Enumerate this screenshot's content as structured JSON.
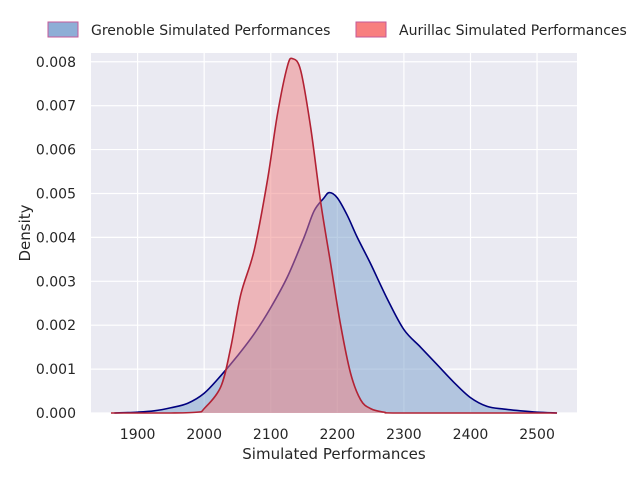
{
  "chart_data": {
    "type": "area",
    "xlabel": "Simulated Performances",
    "ylabel": "Density",
    "xlim": [
      1830,
      2560
    ],
    "ylim": [
      0,
      0.0082
    ],
    "x_ticks": [
      1900,
      2000,
      2100,
      2200,
      2300,
      2400,
      2500
    ],
    "y_ticks": [
      0.0,
      0.001,
      0.002,
      0.003,
      0.004,
      0.005,
      0.006,
      0.007,
      0.008
    ],
    "y_tick_labels": [
      "0.000",
      "0.001",
      "0.002",
      "0.003",
      "0.004",
      "0.005",
      "0.006",
      "0.007",
      "0.008"
    ],
    "grid": true,
    "legend_position": "top",
    "series": [
      {
        "name": "Grenoble Simulated Performances",
        "fill": "#7a9fcc",
        "line": "#00007f",
        "legend_fill": "#8eaed6",
        "legend_edge": "#c45a9a",
        "points": [
          [
            1865,
            0.0
          ],
          [
            1900,
            2e-05
          ],
          [
            1925,
            5e-05
          ],
          [
            1950,
            0.00012
          ],
          [
            1975,
            0.00022
          ],
          [
            2000,
            0.00045
          ],
          [
            2025,
            0.00085
          ],
          [
            2050,
            0.0013
          ],
          [
            2075,
            0.0018
          ],
          [
            2100,
            0.0024
          ],
          [
            2125,
            0.0031
          ],
          [
            2150,
            0.004
          ],
          [
            2165,
            0.0046
          ],
          [
            2180,
            0.0049
          ],
          [
            2188,
            0.00502
          ],
          [
            2200,
            0.0049
          ],
          [
            2215,
            0.0045
          ],
          [
            2230,
            0.004
          ],
          [
            2250,
            0.0034
          ],
          [
            2275,
            0.0026
          ],
          [
            2300,
            0.0019
          ],
          [
            2325,
            0.0015
          ],
          [
            2350,
            0.0011
          ],
          [
            2375,
            0.0007
          ],
          [
            2400,
            0.00035
          ],
          [
            2425,
            0.00015
          ],
          [
            2450,
            9e-05
          ],
          [
            2475,
            5e-05
          ],
          [
            2500,
            2e-05
          ],
          [
            2530,
            0.0
          ]
        ]
      },
      {
        "name": "Aurillac Simulated Performances",
        "fill": "#f08080",
        "line": "#b22234",
        "legend_fill": "#f87f7f",
        "legend_edge": "#c45a9a",
        "points": [
          [
            1860,
            0.0
          ],
          [
            1950,
            0.0
          ],
          [
            1990,
            2e-05
          ],
          [
            2000,
            0.0001
          ],
          [
            2025,
            0.0006
          ],
          [
            2040,
            0.0015
          ],
          [
            2055,
            0.0027
          ],
          [
            2075,
            0.0037
          ],
          [
            2095,
            0.0053
          ],
          [
            2110,
            0.0068
          ],
          [
            2125,
            0.0079
          ],
          [
            2133,
            0.00807
          ],
          [
            2145,
            0.0078
          ],
          [
            2160,
            0.0065
          ],
          [
            2175,
            0.0048
          ],
          [
            2190,
            0.0034
          ],
          [
            2205,
            0.002
          ],
          [
            2220,
            0.0009
          ],
          [
            2235,
            0.0003
          ],
          [
            2250,
            0.0001
          ],
          [
            2270,
            2e-05
          ],
          [
            2300,
            0.0
          ],
          [
            2530,
            0.0
          ]
        ]
      }
    ]
  }
}
